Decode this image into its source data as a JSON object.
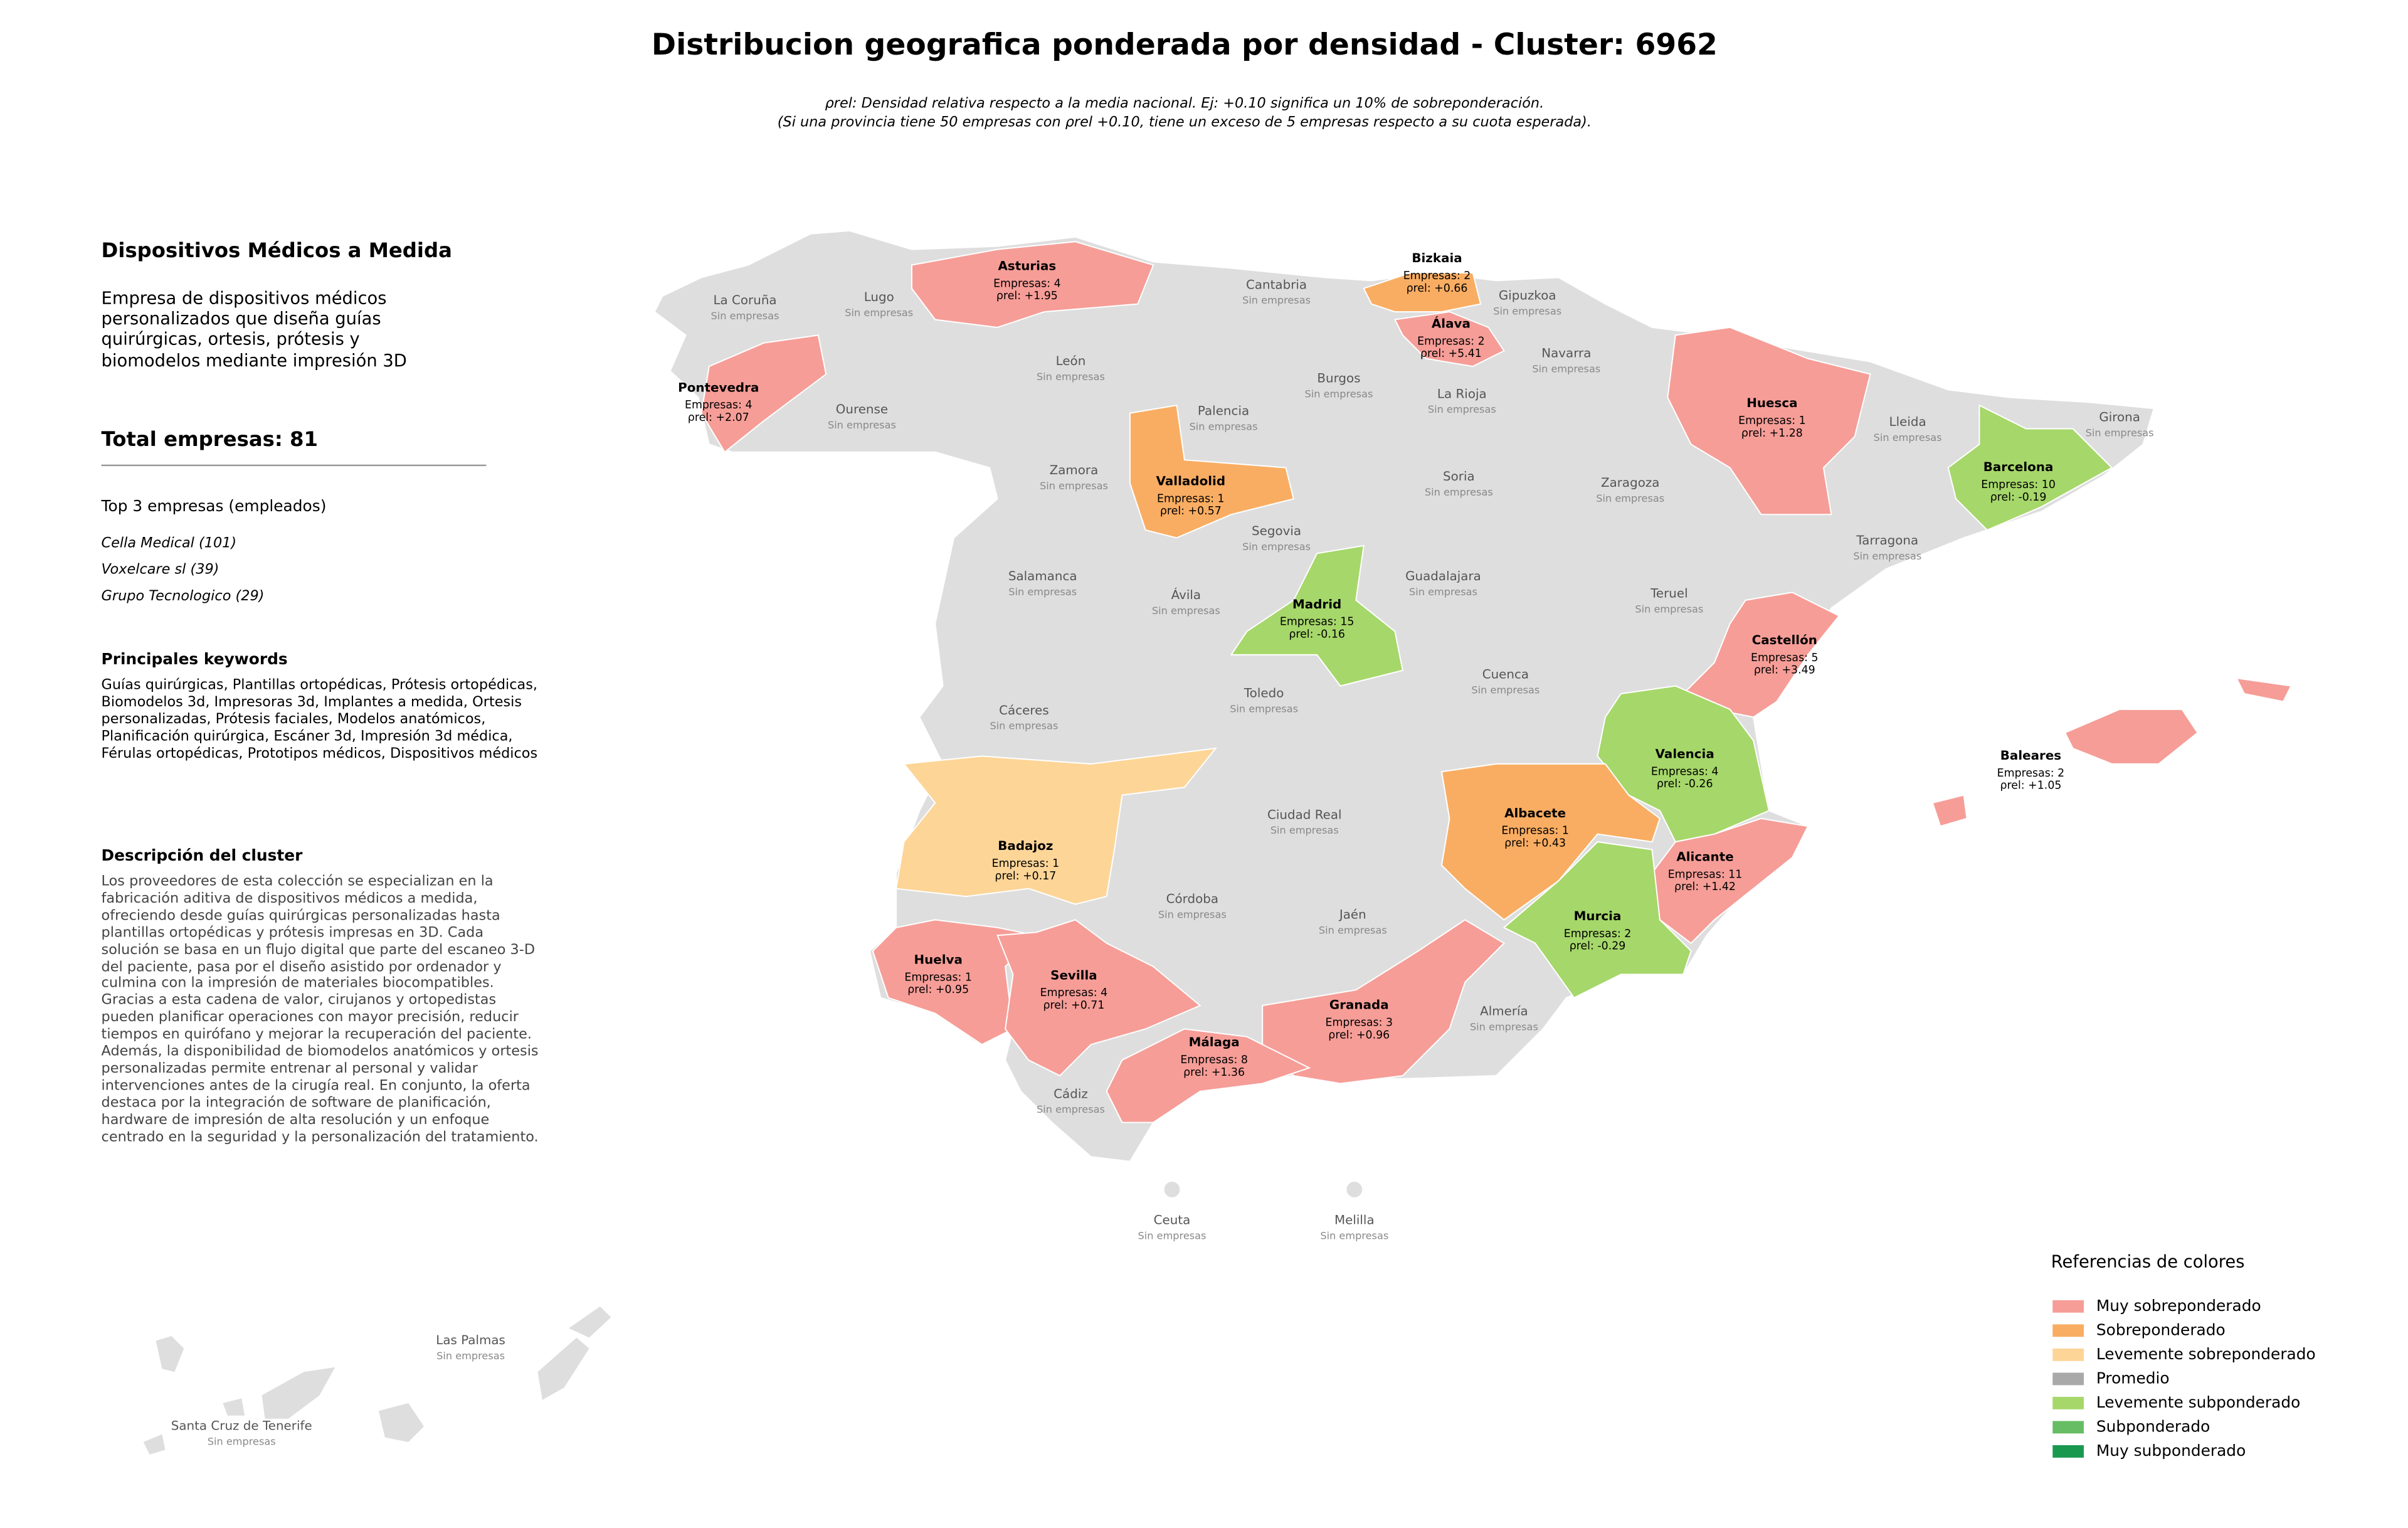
{
  "header": {
    "title": "Distribucion geografica ponderada por densidad - Cluster: 6962",
    "subtitle_lines": [
      "ρrel: Densidad relativa respecto a la media nacional. Ej: +0.10 significa un 10% de sobreponderación.",
      "(Si una provincia tiene 50 empresas con ρrel +0.10, tiene un exceso de 5 empresas respecto a su cuota esperada)."
    ]
  },
  "panel": {
    "title": "Dispositivos Médicos a Medida",
    "description": "Empresa de dispositivos médicos personalizados que diseña guías quirúrgicas, ortesis, prótesis y biomodelos mediante impresión 3D",
    "total": "Total empresas: 81",
    "top_title": "Top 3 empresas (empleados)",
    "top": [
      "Cella Medical (101)",
      "Voxelcare sl (39)",
      "Grupo Tecnologico (29)"
    ],
    "keywords_title": "Principales keywords",
    "keywords": "Guías quirúrgicas, Plantillas ortopédicas, Prótesis ortopédicas, Biomodelos 3d, Impresoras 3d, Implantes a medida, Ortesis personalizadas, Prótesis faciales, Modelos anatómicos, Planificación quirúrgica, Escáner 3d, Impresión 3d médica, Férulas ortopédicas, Prototipos médicos, Dispositivos médicos",
    "cluster_title": "Descripción del cluster",
    "cluster_text": "Los proveedores de esta colección se especializan en la fabricación aditiva de dispositivos médicos a medida, ofreciendo desde guías quirúrgicas personalizadas hasta plantillas ortopédicas y prótesis impresas en 3D. Cada solución se basa en un flujo digital que parte del escaneo 3-D del paciente, pasa por el diseño asistido por ordenador y culmina con la impresión de materiales biocompatibles. Gracias a esta cadena de valor, cirujanos y ortopedistas pueden planificar operaciones con mayor precisión, reducir tiempos en quirófano y mejorar la recuperación del paciente. Además, la disponibilidad de biomodelos anatómicos y ortesis personalizadas permite entrenar al personal y validar intervenciones antes de la cirugía real. En conjunto, la oferta destaca por la integración de software de planificación, hardware de impresión de alta resolución y un enfoque centrado en la seguridad y la personalización del tratamiento."
  },
  "map": {
    "empty_provinces": [
      {
        "name": "La Coruña",
        "detail": "Sin empresas"
      },
      {
        "name": "Lugo",
        "detail": "Sin empresas"
      },
      {
        "name": "Cantabria",
        "detail": "Sin empresas"
      },
      {
        "name": "Gipuzkoa",
        "detail": "Sin empresas"
      },
      {
        "name": "León",
        "detail": "Sin empresas"
      },
      {
        "name": "Navarra",
        "detail": "Sin empresas"
      },
      {
        "name": "Burgos",
        "detail": "Sin empresas"
      },
      {
        "name": "La Rioja",
        "detail": "Sin empresas"
      },
      {
        "name": "Ourense",
        "detail": "Sin empresas"
      },
      {
        "name": "Palencia",
        "detail": "Sin empresas"
      },
      {
        "name": "Lleida",
        "detail": "Sin empresas"
      },
      {
        "name": "Girona",
        "detail": "Sin empresas"
      },
      {
        "name": "Zamora",
        "detail": "Sin empresas"
      },
      {
        "name": "Soria",
        "detail": "Sin empresas"
      },
      {
        "name": "Zaragoza",
        "detail": "Sin empresas"
      },
      {
        "name": "Segovia",
        "detail": "Sin empresas"
      },
      {
        "name": "Tarragona",
        "detail": "Sin empresas"
      },
      {
        "name": "Salamanca",
        "detail": "Sin empresas"
      },
      {
        "name": "Guadalajara",
        "detail": "Sin empresas"
      },
      {
        "name": "Ávila",
        "detail": "Sin empresas"
      },
      {
        "name": "Teruel",
        "detail": "Sin empresas"
      },
      {
        "name": "Cuenca",
        "detail": "Sin empresas"
      },
      {
        "name": "Toledo",
        "detail": "Sin empresas"
      },
      {
        "name": "Cáceres",
        "detail": "Sin empresas"
      },
      {
        "name": "Ciudad Real",
        "detail": "Sin empresas"
      },
      {
        "name": "Córdoba",
        "detail": "Sin empresas"
      },
      {
        "name": "Jaén",
        "detail": "Sin empresas"
      },
      {
        "name": "Almería",
        "detail": "Sin empresas"
      },
      {
        "name": "Cádiz",
        "detail": "Sin empresas"
      },
      {
        "name": "Ceuta",
        "detail": "Sin empresas"
      },
      {
        "name": "Melilla",
        "detail": "Sin empresas"
      },
      {
        "name": "Las Palmas",
        "detail": "Sin empresas"
      },
      {
        "name": "Santa Cruz de Tenerife",
        "detail": "Sin empresas"
      }
    ],
    "provinces": [
      {
        "name": "Asturias",
        "empresas": "Empresas: 4",
        "rho": "ρrel: +1.95",
        "color": "#f69d97"
      },
      {
        "name": "Pontevedra",
        "empresas": "Empresas: 4",
        "rho": "ρrel: +2.07",
        "color": "#f69d97"
      },
      {
        "name": "Bizkaia",
        "empresas": "Empresas: 2",
        "rho": "ρrel: +0.66",
        "color": "#f9ad62"
      },
      {
        "name": "Álava",
        "empresas": "Empresas: 2",
        "rho": "ρrel: +5.41",
        "color": "#f69d97"
      },
      {
        "name": "Valladolid",
        "empresas": "Empresas: 1",
        "rho": "ρrel: +0.57",
        "color": "#f9ad62"
      },
      {
        "name": "Huesca",
        "empresas": "Empresas: 1",
        "rho": "ρrel: +1.28",
        "color": "#f69d97"
      },
      {
        "name": "Barcelona",
        "empresas": "Empresas: 10",
        "rho": "ρrel: -0.19",
        "color": "#a6d76a"
      },
      {
        "name": "Madrid",
        "empresas": "Empresas: 15",
        "rho": "ρrel: -0.16",
        "color": "#a6d76a"
      },
      {
        "name": "Castellón",
        "empresas": "Empresas: 5",
        "rho": "ρrel: +3.49",
        "color": "#f69d97"
      },
      {
        "name": "Valencia",
        "empresas": "Empresas: 4",
        "rho": "ρrel: -0.26",
        "color": "#a6d76a"
      },
      {
        "name": "Albacete",
        "empresas": "Empresas: 1",
        "rho": "ρrel: +0.43",
        "color": "#f9ad62"
      },
      {
        "name": "Alicante",
        "empresas": "Empresas: 11",
        "rho": "ρrel: +1.42",
        "color": "#f69d97"
      },
      {
        "name": "Murcia",
        "empresas": "Empresas: 2",
        "rho": "ρrel: -0.29",
        "color": "#a6d76a"
      },
      {
        "name": "Badajoz",
        "empresas": "Empresas: 1",
        "rho": "ρrel: +0.17",
        "color": "#fdd597"
      },
      {
        "name": "Huelva",
        "empresas": "Empresas: 1",
        "rho": "ρrel: +0.95",
        "color": "#f69d97"
      },
      {
        "name": "Sevilla",
        "empresas": "Empresas: 4",
        "rho": "ρrel: +0.71",
        "color": "#f69d97"
      },
      {
        "name": "Granada",
        "empresas": "Empresas: 3",
        "rho": "ρrel: +0.96",
        "color": "#f69d97"
      },
      {
        "name": "Málaga",
        "empresas": "Empresas: 8",
        "rho": "ρrel: +1.36",
        "color": "#f69d97"
      },
      {
        "name": "Baleares",
        "empresas": "Empresas: 2",
        "rho": "ρrel: +1.05",
        "color": "#f69d97"
      }
    ]
  },
  "legend": {
    "title": "Referencias de colores",
    "items": [
      {
        "label": "Muy sobreponderado",
        "color": "#f69d97"
      },
      {
        "label": "Sobreponderado",
        "color": "#f9ad62"
      },
      {
        "label": "Levemente sobreponderado",
        "color": "#fdd597"
      },
      {
        "label": "Promedio",
        "color": "#a9a9a9"
      },
      {
        "label": "Levemente subponderado",
        "color": "#a6d76a"
      },
      {
        "label": "Subponderado",
        "color": "#66bd63"
      },
      {
        "label": "Muy subponderado",
        "color": "#1a9850"
      }
    ]
  }
}
